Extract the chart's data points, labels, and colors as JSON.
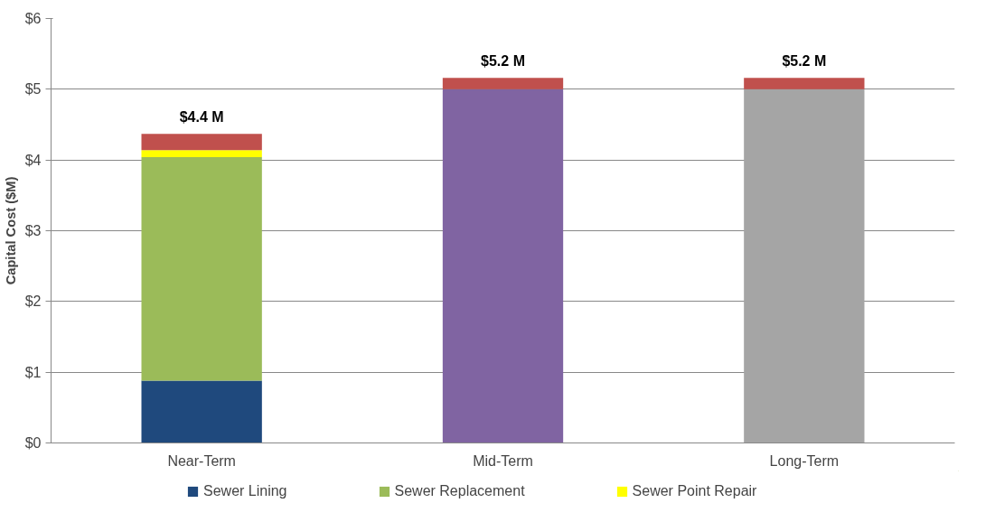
{
  "chart_data": {
    "type": "bar",
    "stacked": true,
    "ylabel": "Capital Cost ($M)",
    "categories": [
      "Near-Term",
      "Mid-Term",
      "Long-Term"
    ],
    "series": [
      {
        "name": "Sewer Lining",
        "color": "#1f497d",
        "values": [
          0.88,
          0,
          0
        ]
      },
      {
        "name": "Sewer Replacement",
        "color": "#9bbb59",
        "values": [
          3.16,
          0,
          0
        ]
      },
      {
        "name": "Sewer Point Repair",
        "color": "#ffff00",
        "values": [
          0.1,
          0,
          0
        ]
      },
      {
        "color": "#8064a2",
        "values": [
          0,
          5.0,
          0
        ]
      },
      {
        "color": "#a5a5a5",
        "values": [
          0,
          0,
          5.0
        ]
      },
      {
        "color": "#c0504d",
        "values": [
          0.23,
          0.16,
          0.16
        ]
      }
    ],
    "totals": [
      "$4.4 M",
      "$5.2 M",
      "$5.2 M"
    ],
    "ylim": [
      0,
      6
    ],
    "yticks": [
      {
        "value": 0,
        "label": "$0"
      },
      {
        "value": 1,
        "label": "$1"
      },
      {
        "value": 2,
        "label": "$2"
      },
      {
        "value": 3,
        "label": "$3"
      },
      {
        "value": 4,
        "label": "$4"
      },
      {
        "value": 5,
        "label": "$5"
      },
      {
        "value": 6,
        "label": "$6"
      }
    ],
    "grid": "y",
    "legend": "bottom"
  }
}
